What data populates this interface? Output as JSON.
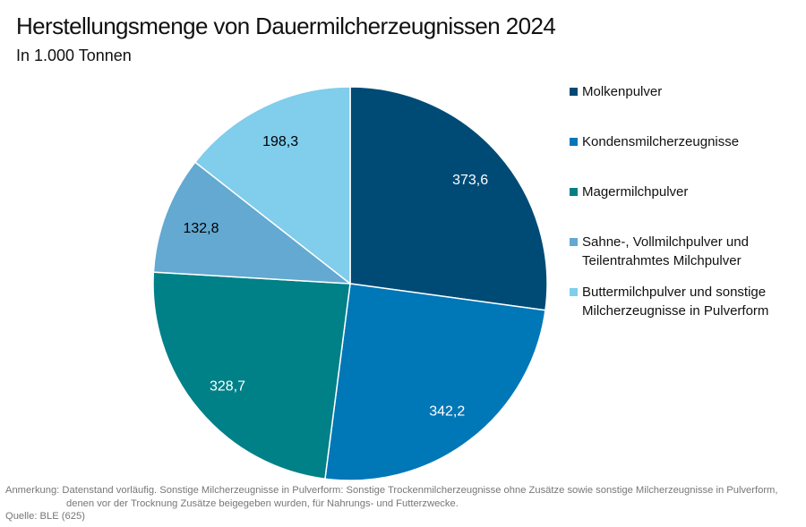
{
  "chart_data": {
    "type": "pie",
    "title": "Herstellungsmenge von Dauermilcherzeugnissen 2024",
    "subtitle": "In 1.000 Tonnen",
    "start_angle_deg": 0,
    "direction": "clockwise",
    "slices": [
      {
        "label": "Molkenpulver",
        "value": 373.6,
        "value_label": "373,6",
        "color": "#004B76",
        "label_color": "#ffffff"
      },
      {
        "label": "Kondensmilcherzeugnisse",
        "value": 342.2,
        "value_label": "342,2",
        "color": "#0077B6",
        "label_color": "#ffffff"
      },
      {
        "label": "Magermilchpulver",
        "value": 328.7,
        "value_label": "328,7",
        "color": "#008087",
        "label_color": "#ffffff"
      },
      {
        "label": "Sahne-, Vollmilchpulver und Teilentrahmtes Milchpulver",
        "legend_lines": [
          "Sahne-, Vollmilchpulver und",
          "Teilentrahmtes Milchpulver"
        ],
        "value": 132.8,
        "value_label": "132,8",
        "color": "#63A9D1",
        "label_color": "#000000"
      },
      {
        "label": "Buttermilchpulver und sonstige Milcherzeugnisse in Pulverform",
        "legend_lines": [
          "Buttermilchpulver und sonstige",
          "Milcherzeugnisse in Pulverform"
        ],
        "value": 198.3,
        "value_label": "198,3",
        "color": "#80CDEC",
        "label_color": "#000000"
      }
    ],
    "legend_position": "right"
  },
  "legend": {
    "items": [
      {
        "lines": [
          "Molkenpulver"
        ]
      },
      {
        "lines": [
          "Kondensmilcherzeugnisse"
        ]
      },
      {
        "lines": [
          "Magermilchpulver"
        ]
      },
      {
        "lines": [
          "Sahne-, Vollmilchpulver und",
          "Teilentrahmtes Milchpulver"
        ]
      },
      {
        "lines": [
          "Buttermilchpulver und sonstige",
          "Milcherzeugnisse in Pulverform"
        ]
      }
    ]
  },
  "footer": {
    "note_line1": "Anmerkung: Datenstand vorläufig. Sonstige Milcherzeugnisse in Pulverform: Sonstige Trockenmilcherzeugnisse ohne Zusätze sowie sonstige Milcherzeugnisse in Pulverform,",
    "note_line2": "denen vor der Trocknung Zusätze beigegeben wurden, für Nahrungs- und Futterzwecke.",
    "source": "Quelle: BLE (625)"
  }
}
